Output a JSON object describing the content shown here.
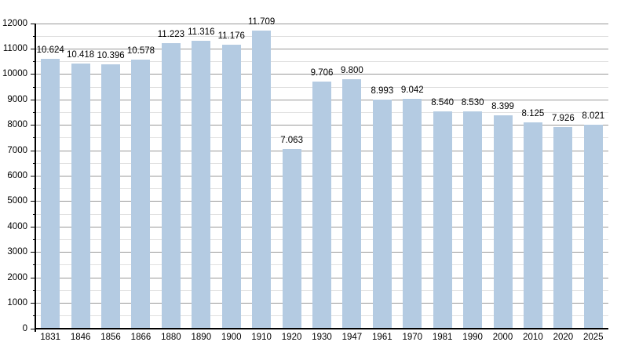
{
  "chart_data": {
    "type": "bar",
    "title": "",
    "xlabel": "",
    "ylabel": "",
    "categories": [
      "1831",
      "1846",
      "1856",
      "1866",
      "1880",
      "1890",
      "1900",
      "1910",
      "1920",
      "1930",
      "1947",
      "1961",
      "1970",
      "1981",
      "1990",
      "2000",
      "2010",
      "2020",
      "2025"
    ],
    "values": [
      10624,
      10418,
      10396,
      10578,
      11223,
      11316,
      11176,
      11709,
      7063,
      9706,
      9800,
      8993,
      9042,
      8540,
      8530,
      8399,
      8125,
      7926,
      8021
    ],
    "value_labels": [
      "10.624",
      "10.418",
      "10.396",
      "10.578",
      "11.223",
      "11.316",
      "11.176",
      "11.709",
      "7.063",
      "9.706",
      "9.800",
      "8.993",
      "9.042",
      "8.540",
      "8.530",
      "8.399",
      "8.125",
      "7.926",
      "8.021"
    ],
    "ylim": [
      0,
      12000
    ],
    "y_major_step": 1000,
    "y_minor_step": 500,
    "y_tick_labels": [
      "0",
      "1000",
      "2000",
      "3000",
      "4000",
      "5000",
      "6000",
      "7000",
      "8000",
      "9000",
      "10000",
      "11000",
      "12000"
    ],
    "grid": true,
    "legend_position": "none",
    "colors": {
      "bar_fill": "#b4cbe2",
      "major_grid": "#999999",
      "minor_grid": "#e0e0e0",
      "axis": "#000000",
      "text": "#000000",
      "background": "#ffffff"
    }
  }
}
